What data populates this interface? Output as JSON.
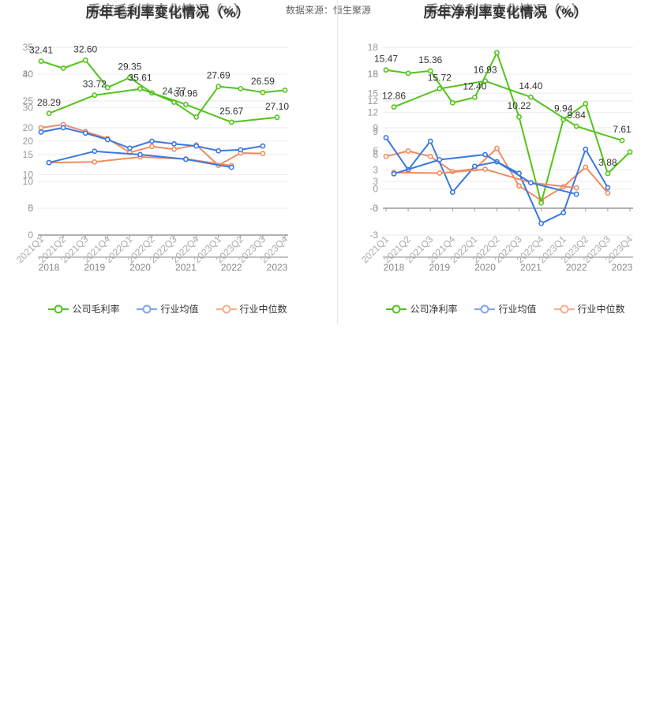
{
  "source_label": "数据来源：恒生聚源",
  "chart_data": [
    {
      "type": "line",
      "title": "历年毛利率变化情况（%）",
      "overlay_title": "季度毛利率变化情况（%）",
      "legend": [
        "公司毛利率",
        "行业均值",
        "行业中位数"
      ],
      "colors": {
        "company": "#52c41a",
        "mean": "#3a78e0",
        "median": "#f08c62"
      },
      "annual": {
        "x": [
          "2018",
          "2019",
          "2020",
          "2021",
          "2022",
          "2023"
        ],
        "ylim": [
          0,
          40
        ],
        "yticks": [
          0,
          10,
          20,
          30,
          40
        ],
        "company": [
          28.29,
          33.72,
          35.61,
          30.96,
          25.67,
          27.1
        ],
        "mean": [
          13.6,
          17.0,
          16.0,
          14.6,
          12.2,
          null
        ],
        "median": [
          13.6,
          13.8,
          15.3,
          14.7,
          12.7,
          null
        ],
        "labels": [
          {
            "i": 0,
            "text": "28.29"
          },
          {
            "i": 1,
            "text": "33.72"
          },
          {
            "i": 2,
            "text": "35.61"
          },
          {
            "i": 3,
            "text": "30.96"
          },
          {
            "i": 4,
            "text": "25.67"
          },
          {
            "i": 5,
            "text": "27.10"
          }
        ]
      },
      "quarterly": {
        "x": [
          "2021Q1",
          "2021Q2",
          "2021Q3",
          "2021Q4",
          "2022Q1",
          "2022Q2",
          "2022Q3",
          "2022Q4",
          "2023Q1",
          "2023Q2",
          "2023Q3",
          "2023Q4"
        ],
        "ylim": [
          0,
          35
        ],
        "yticks": [
          0,
          5,
          10,
          15,
          20,
          25,
          30,
          35
        ],
        "company": [
          32.41,
          31.1,
          32.6,
          27.5,
          29.35,
          26.5,
          24.77,
          22.0,
          27.69,
          27.3,
          26.59,
          27.0
        ],
        "mean": [
          19.2,
          20.0,
          19.0,
          17.8,
          16.2,
          17.5,
          17.0,
          16.6,
          15.7,
          15.9,
          16.6,
          null
        ],
        "median": [
          20.0,
          20.6,
          19.3,
          18.0,
          15.4,
          16.5,
          16.0,
          16.8,
          13.0,
          15.3,
          15.2,
          null
        ],
        "labels": [
          {
            "i": 0,
            "text": "32.41"
          },
          {
            "i": 2,
            "text": "32.60"
          },
          {
            "i": 4,
            "text": "29.35"
          },
          {
            "i": 6,
            "text": "24.77"
          },
          {
            "i": 8,
            "text": "27.69"
          },
          {
            "i": 10,
            "text": "26.59"
          }
        ]
      }
    },
    {
      "type": "line",
      "title": "历年净利率变化情况（%）",
      "overlay_title": "季度净利率变化情况（%）",
      "legend": [
        "公司净利率",
        "行业均值",
        "行业中位数"
      ],
      "colors": {
        "company": "#52c41a",
        "mean": "#3a78e0",
        "median": "#f08c62"
      },
      "annual": {
        "x": [
          "2018",
          "2019",
          "2020",
          "2021",
          "2022",
          "2023"
        ],
        "ylim": [
          -3,
          18
        ],
        "yticks": [
          -3,
          0,
          3,
          6,
          9,
          12,
          15,
          18
        ],
        "company": [
          12.86,
          15.72,
          16.93,
          14.4,
          9.84,
          7.61
        ],
        "mean": [
          2.4,
          4.6,
          5.4,
          1.0,
          -0.8,
          null
        ],
        "median": [
          2.6,
          2.5,
          3.1,
          1.0,
          0.2,
          null
        ],
        "labels": [
          {
            "i": 0,
            "text": "12.86"
          },
          {
            "i": 1,
            "text": "15.72"
          },
          {
            "i": 2,
            "text": "16.93"
          },
          {
            "i": 3,
            "text": "14.40"
          },
          {
            "i": 4,
            "text": "9.84"
          },
          {
            "i": 5,
            "text": "7.61"
          }
        ]
      },
      "quarterly": {
        "x": [
          "2021Q1",
          "2021Q2",
          "2021Q3",
          "2021Q4",
          "2022Q1",
          "2022Q2",
          "2022Q3",
          "2022Q4",
          "2023Q1",
          "2023Q2",
          "2023Q3",
          "2023Q4"
        ],
        "ylim": [
          -3,
          18
        ],
        "yticks": [
          -3,
          0,
          3,
          6,
          9,
          12,
          15,
          18
        ],
        "company": [
          15.47,
          15.1,
          15.36,
          11.8,
          12.4,
          17.4,
          10.22,
          0.6,
          9.94,
          11.7,
          3.88,
          6.3
        ],
        "mean": [
          7.9,
          4.3,
          7.5,
          1.8,
          4.7,
          5.2,
          3.9,
          -1.7,
          -0.5,
          6.6,
          2.3,
          null
        ],
        "median": [
          5.8,
          6.4,
          5.8,
          4.1,
          4.4,
          6.7,
          2.5,
          0.9,
          2.4,
          4.6,
          1.7,
          null
        ],
        "labels": [
          {
            "i": 0,
            "text": "15.47"
          },
          {
            "i": 2,
            "text": "15.36"
          },
          {
            "i": 4,
            "text": "12.40"
          },
          {
            "i": 6,
            "text": "10.22"
          },
          {
            "i": 8,
            "text": "9.94"
          },
          {
            "i": 10,
            "text": "3.88"
          }
        ]
      }
    }
  ]
}
